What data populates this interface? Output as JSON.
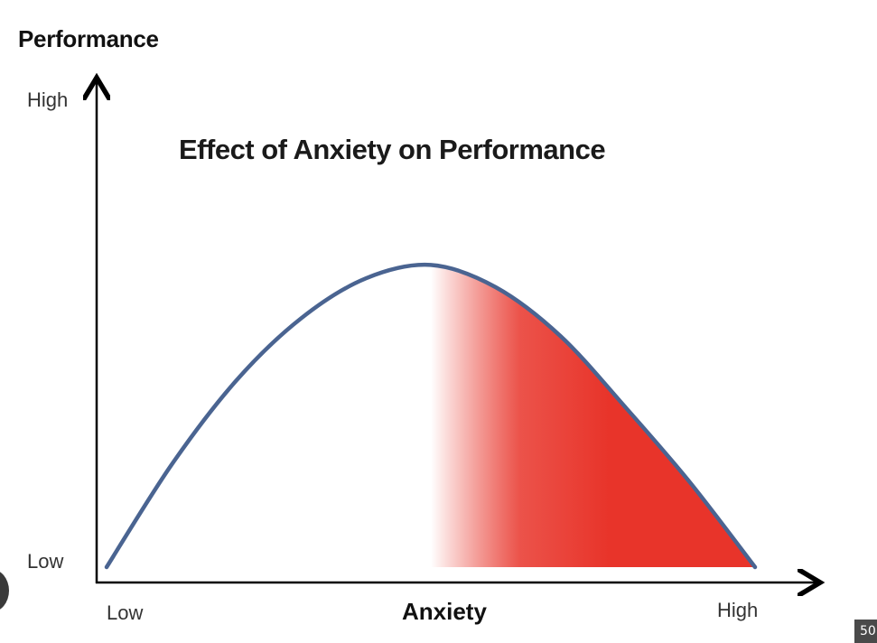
{
  "chart_data": {
    "type": "line",
    "title": "Effect of Anxiety on Performance",
    "xlabel": "Anxiety",
    "ylabel": "Performance",
    "x_ticks": [
      "Low",
      "High"
    ],
    "y_ticks": [
      "Low",
      "High"
    ],
    "xlim": [
      0,
      10
    ],
    "ylim": [
      0,
      10
    ],
    "grid": false,
    "legend": "none",
    "series": [
      {
        "x": [
          0,
          1,
          2,
          3,
          4,
          5,
          6,
          7,
          8,
          9,
          10
        ],
        "y": [
          0,
          2.3,
          4.2,
          5.6,
          6.5,
          6.8,
          6.3,
          5.2,
          3.6,
          1.9,
          0
        ],
        "color": "#4a6491"
      }
    ],
    "shaded_region": {
      "x_from": 5,
      "x_to": 10,
      "color_from": "#ffffff",
      "color_to": "#e8342a"
    }
  },
  "ui": {
    "page_badge": "50"
  },
  "colors": {
    "axis": "#000000",
    "curve": "#4a6491",
    "shade": "#e8342a"
  }
}
